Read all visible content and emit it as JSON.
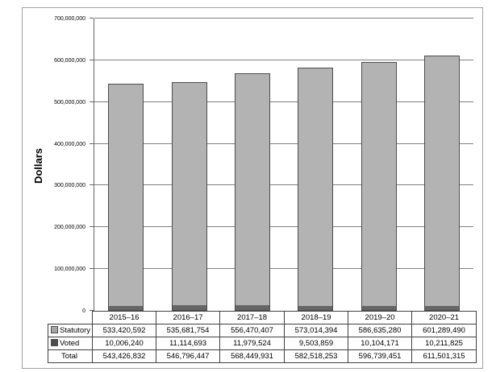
{
  "chart_data": {
    "type": "bar",
    "stacked": true,
    "title": "",
    "xlabel": "",
    "ylabel": "Dollars",
    "categories": [
      "2015–16",
      "2016–17",
      "2017–18",
      "2018–19",
      "2019–20",
      "2020–21"
    ],
    "series": [
      {
        "name": "Statutory",
        "color": "#b3b3b3",
        "values": [
          533420592,
          535681754,
          556470407,
          573014394,
          586635280,
          601289490
        ]
      },
      {
        "name": "Voted",
        "color": "#666666",
        "values": [
          10006240,
          11114693,
          11979524,
          9503859,
          10104171,
          10211825
        ]
      }
    ],
    "totals": [
      543426832,
      546796447,
      568449931,
      582518253,
      596739451,
      611501315
    ],
    "ylim": [
      0,
      700000000
    ],
    "ytick_step": 100000000,
    "ytick_labels": [
      "0",
      "100,000,000",
      "200,000,000",
      "300,000,000",
      "400,000,000",
      "500,000,000",
      "600,000,000",
      "700,000,000"
    ],
    "grid": true,
    "legend_position": "table-left-column"
  },
  "table": {
    "column_headers": [
      "2015–16",
      "2016–17",
      "2017–18",
      "2018–19",
      "2019–20",
      "2020–21"
    ],
    "rows": [
      {
        "label": "Statutory",
        "swatch_color": "#a6a6a6",
        "values": [
          "533,420,592",
          "535,681,754",
          "556,470,407",
          "573,014,394",
          "586,635,280",
          "601,289,490"
        ]
      },
      {
        "label": "Voted",
        "swatch_color": "#4d4d4d",
        "values": [
          "10,006,240",
          "11,114,693",
          "11,979,524",
          "9,503,859",
          "10,104,171",
          "10,211,825"
        ]
      },
      {
        "label": "Total",
        "swatch_color": null,
        "values": [
          "543,426,832",
          "546,796,447",
          "568,449,931",
          "582,518,253",
          "596,739,451",
          "611,501,315"
        ]
      }
    ]
  },
  "colors": {
    "statutory_fill": "#b3b3b3",
    "voted_fill": "#666666",
    "bar_border": "#4d4d4d",
    "gridline": "#808080",
    "figure_border": "#a0a0a0",
    "table_border": "#404040"
  }
}
